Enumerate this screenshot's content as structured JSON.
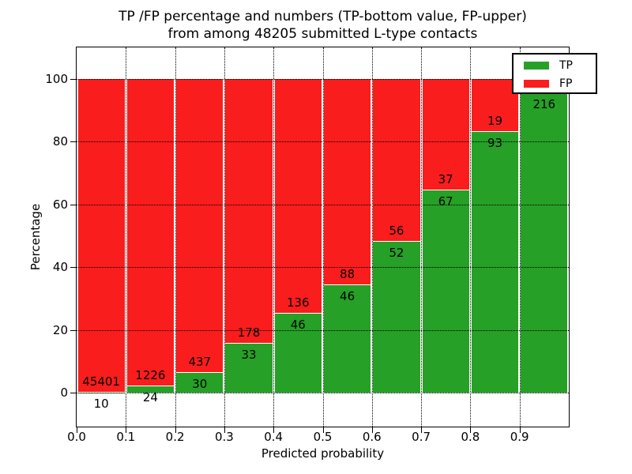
{
  "chart_data": {
    "type": "bar",
    "stacked": true,
    "title": "TP /FP percentage and numbers (TP-bottom value, FP-upper)",
    "subtitle": "from among 48205 submitted L-type contacts",
    "xlabel": "Predicted probability",
    "ylabel": "Percentage",
    "total_submitted": 48205,
    "xlim": [
      0.0,
      1.0
    ],
    "ylim": [
      -10.8,
      110.0
    ],
    "grid": true,
    "x_tick_labels": [
      "0.0",
      "0.1",
      "0.2",
      "0.3",
      "0.4",
      "0.5",
      "0.6",
      "0.7",
      "0.8",
      "0.9"
    ],
    "y_tick_labels": [
      "0",
      "20",
      "40",
      "60",
      "80",
      "100"
    ],
    "y_tick_values": [
      0,
      20,
      40,
      60,
      80,
      100
    ],
    "colors": {
      "tp": "#26a026",
      "fp": "#f91d1d"
    },
    "legend": {
      "position": "upper right",
      "entries": [
        {
          "label": "TP",
          "color": "#26a026"
        },
        {
          "label": "FP",
          "color": "#f91d1d"
        }
      ]
    },
    "bins": [
      {
        "x0": 0.0,
        "x1": 0.1,
        "tp": 10,
        "fp": 45401,
        "tp_pct": 0.02,
        "tp_label": "10",
        "fp_label": "45401"
      },
      {
        "x0": 0.1,
        "x1": 0.2,
        "tp": 24,
        "fp": 1226,
        "tp_pct": 1.92,
        "tp_label": "24",
        "fp_label": "1226"
      },
      {
        "x0": 0.2,
        "x1": 0.3,
        "tp": 30,
        "fp": 437,
        "tp_pct": 6.42,
        "tp_label": "30",
        "fp_label": "437"
      },
      {
        "x0": 0.3,
        "x1": 0.4,
        "tp": 33,
        "fp": 178,
        "tp_pct": 15.64,
        "tp_label": "33",
        "fp_label": "178"
      },
      {
        "x0": 0.4,
        "x1": 0.5,
        "tp": 46,
        "fp": 136,
        "tp_pct": 25.27,
        "tp_label": "46",
        "fp_label": "136"
      },
      {
        "x0": 0.5,
        "x1": 0.6,
        "tp": 46,
        "fp": 88,
        "tp_pct": 34.33,
        "tp_label": "46",
        "fp_label": "88"
      },
      {
        "x0": 0.6,
        "x1": 0.7,
        "tp": 52,
        "fp": 56,
        "tp_pct": 48.15,
        "tp_label": "52",
        "fp_label": "56"
      },
      {
        "x0": 0.7,
        "x1": 0.8,
        "tp": 67,
        "fp": 37,
        "tp_pct": 64.42,
        "tp_label": "67",
        "fp_label": "37"
      },
      {
        "x0": 0.8,
        "x1": 0.9,
        "tp": 93,
        "fp": 19,
        "tp_pct": 83.04,
        "tp_label": "93",
        "fp_label": "19"
      },
      {
        "x0": 0.9,
        "x1": 1.0,
        "tp": 216,
        "tp_pct": 95.6,
        "tp_label": "216",
        "fp_label": ""
      }
    ]
  }
}
